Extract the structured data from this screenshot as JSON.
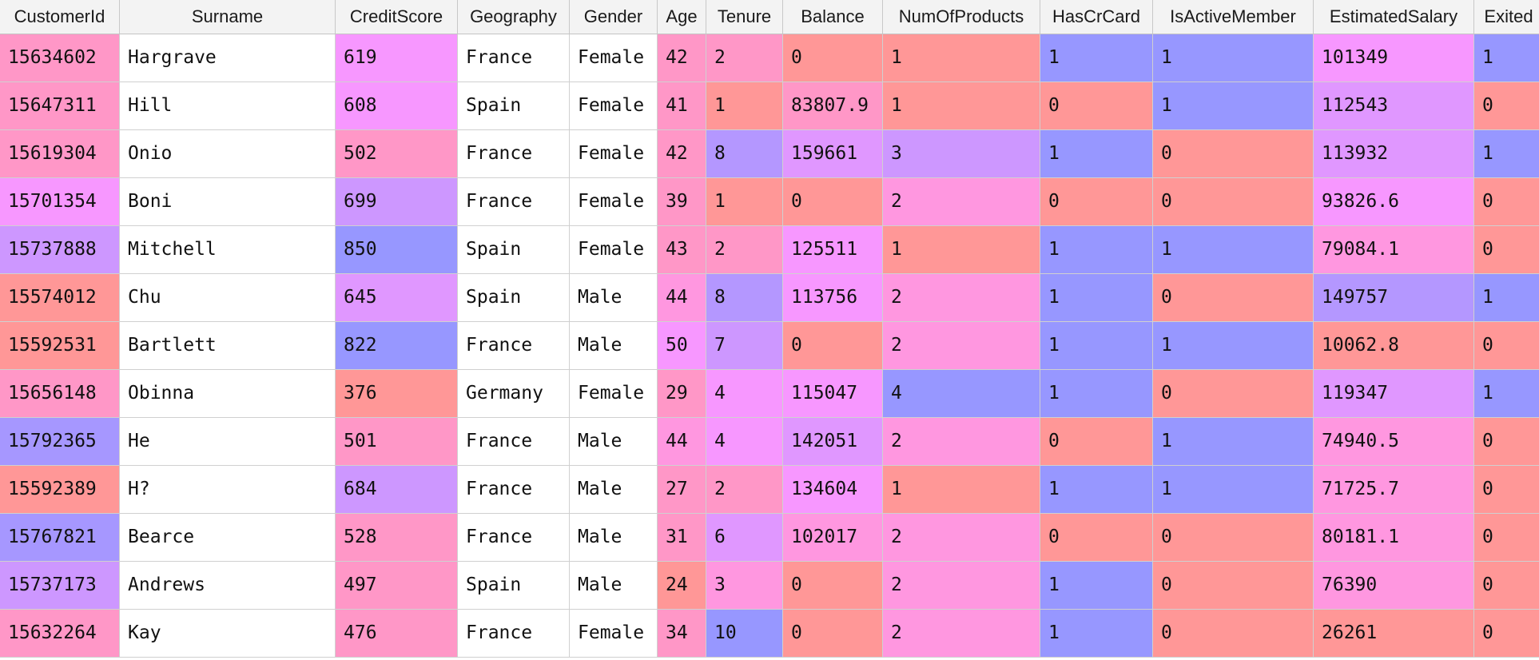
{
  "colors": {
    "header_bg": "#f3f3f3",
    "plain": "#ffffff",
    "red": "#ff9797",
    "rose": "#ff97c7",
    "pink": "#ff97e0",
    "magenta": "#f797ff",
    "orchid": "#e097ff",
    "lilac": "#cd97ff",
    "lavender": "#b497ff",
    "periwinkle": "#a697ff",
    "blue": "#9797ff"
  },
  "table": {
    "columns": [
      "CustomerId",
      "Surname",
      "CreditScore",
      "Geography",
      "Gender",
      "Age",
      "Tenure",
      "Balance",
      "NumOfProducts",
      "HasCrCard",
      "IsActiveMember",
      "EstimatedSalary",
      "Exited"
    ],
    "rows": [
      {
        "cells": [
          "15634602",
          "Hargrave",
          "619",
          "France",
          "Female",
          "42",
          "2",
          "0",
          "1",
          "1",
          "1",
          "101349",
          "1"
        ],
        "colors": [
          "rose",
          "plain",
          "magenta",
          "plain",
          "plain",
          "rose",
          "rose",
          "red",
          "red",
          "blue",
          "blue",
          "magenta",
          "blue"
        ]
      },
      {
        "cells": [
          "15647311",
          "Hill",
          "608",
          "Spain",
          "Female",
          "41",
          "1",
          "83807.9",
          "1",
          "0",
          "1",
          "112543",
          "0"
        ],
        "colors": [
          "rose",
          "plain",
          "magenta",
          "plain",
          "plain",
          "rose",
          "red",
          "rose",
          "red",
          "red",
          "blue",
          "orchid",
          "red"
        ]
      },
      {
        "cells": [
          "15619304",
          "Onio",
          "502",
          "France",
          "Female",
          "42",
          "8",
          "159661",
          "3",
          "1",
          "0",
          "113932",
          "1"
        ],
        "colors": [
          "rose",
          "plain",
          "rose",
          "plain",
          "plain",
          "rose",
          "lavender",
          "orchid",
          "lilac",
          "blue",
          "red",
          "orchid",
          "blue"
        ]
      },
      {
        "cells": [
          "15701354",
          "Boni",
          "699",
          "France",
          "Female",
          "39",
          "1",
          "0",
          "2",
          "0",
          "0",
          "93826.6",
          "0"
        ],
        "colors": [
          "magenta",
          "plain",
          "lilac",
          "plain",
          "plain",
          "rose",
          "red",
          "red",
          "pink",
          "red",
          "red",
          "magenta",
          "red"
        ]
      },
      {
        "cells": [
          "15737888",
          "Mitchell",
          "850",
          "Spain",
          "Female",
          "43",
          "2",
          "125511",
          "1",
          "1",
          "1",
          "79084.1",
          "0"
        ],
        "colors": [
          "lilac",
          "plain",
          "blue",
          "plain",
          "plain",
          "rose",
          "rose",
          "magenta",
          "red",
          "blue",
          "blue",
          "pink",
          "red"
        ]
      },
      {
        "cells": [
          "15574012",
          "Chu",
          "645",
          "Spain",
          "Male",
          "44",
          "8",
          "113756",
          "2",
          "1",
          "0",
          "149757",
          "1"
        ],
        "colors": [
          "red",
          "plain",
          "orchid",
          "plain",
          "plain",
          "pink",
          "lavender",
          "magenta",
          "pink",
          "blue",
          "red",
          "lavender",
          "blue"
        ]
      },
      {
        "cells": [
          "15592531",
          "Bartlett",
          "822",
          "France",
          "Male",
          "50",
          "7",
          "0",
          "2",
          "1",
          "1",
          "10062.8",
          "0"
        ],
        "colors": [
          "red",
          "plain",
          "blue",
          "plain",
          "plain",
          "magenta",
          "lilac",
          "red",
          "pink",
          "blue",
          "blue",
          "red",
          "red"
        ]
      },
      {
        "cells": [
          "15656148",
          "Obinna",
          "376",
          "Germany",
          "Female",
          "29",
          "4",
          "115047",
          "4",
          "1",
          "0",
          "119347",
          "1"
        ],
        "colors": [
          "rose",
          "plain",
          "red",
          "plain",
          "plain",
          "rose",
          "magenta",
          "magenta",
          "blue",
          "blue",
          "red",
          "orchid",
          "blue"
        ]
      },
      {
        "cells": [
          "15792365",
          "He",
          "501",
          "France",
          "Male",
          "44",
          "4",
          "142051",
          "2",
          "0",
          "1",
          "74940.5",
          "0"
        ],
        "colors": [
          "periwinkle",
          "plain",
          "rose",
          "plain",
          "plain",
          "pink",
          "magenta",
          "orchid",
          "pink",
          "red",
          "blue",
          "pink",
          "red"
        ]
      },
      {
        "cells": [
          "15592389",
          "H?",
          "684",
          "France",
          "Male",
          "27",
          "2",
          "134604",
          "1",
          "1",
          "1",
          "71725.7",
          "0"
        ],
        "colors": [
          "red",
          "plain",
          "lilac",
          "plain",
          "plain",
          "rose",
          "rose",
          "magenta",
          "red",
          "blue",
          "blue",
          "pink",
          "red"
        ]
      },
      {
        "cells": [
          "15767821",
          "Bearce",
          "528",
          "France",
          "Male",
          "31",
          "6",
          "102017",
          "2",
          "0",
          "0",
          "80181.1",
          "0"
        ],
        "colors": [
          "periwinkle",
          "plain",
          "rose",
          "plain",
          "plain",
          "rose",
          "orchid",
          "pink",
          "pink",
          "red",
          "red",
          "pink",
          "red"
        ]
      },
      {
        "cells": [
          "15737173",
          "Andrews",
          "497",
          "Spain",
          "Male",
          "24",
          "3",
          "0",
          "2",
          "1",
          "0",
          "76390",
          "0"
        ],
        "colors": [
          "lilac",
          "plain",
          "rose",
          "plain",
          "plain",
          "red",
          "pink",
          "red",
          "pink",
          "blue",
          "red",
          "pink",
          "red"
        ]
      },
      {
        "cells": [
          "15632264",
          "Kay",
          "476",
          "France",
          "Female",
          "34",
          "10",
          "0",
          "2",
          "1",
          "0",
          "26261",
          "0"
        ],
        "colors": [
          "rose",
          "plain",
          "rose",
          "plain",
          "plain",
          "rose",
          "blue",
          "red",
          "pink",
          "blue",
          "red",
          "red",
          "red"
        ]
      }
    ]
  }
}
